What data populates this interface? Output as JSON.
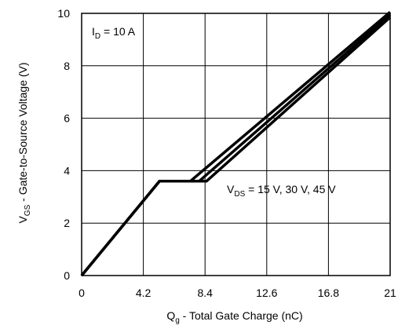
{
  "chart_data": {
    "type": "line",
    "title": "",
    "xlabel_main": "Q",
    "xlabel_sub": "g",
    "xlabel_rest": " - Total Gate Charge (nC)",
    "ylabel_main": "V",
    "ylabel_sub": "GS",
    "ylabel_rest": " - Gate-to-Source Voltage (V)",
    "xlim": [
      0,
      21
    ],
    "ylim": [
      0,
      10
    ],
    "xticks": [
      0,
      4.2,
      8.4,
      12.6,
      16.8,
      21
    ],
    "xtick_labels": [
      "0",
      "4.2",
      "8.4",
      "12.6",
      "16.8",
      "21"
    ],
    "yticks": [
      0,
      2,
      4,
      6,
      8,
      10
    ],
    "ytick_labels": [
      "0",
      "2",
      "4",
      "6",
      "8",
      "10"
    ],
    "grid": true,
    "annotations": {
      "id_main": "I",
      "id_sub": "D",
      "id_rest": " = 10 A",
      "vds_main": "V",
      "vds_sub": "DS",
      "vds_rest": " = 15 V, 30 V, 45 V"
    },
    "series": [
      {
        "points": [
          [
            0,
            0
          ],
          [
            5.3,
            3.6
          ],
          [
            7.4,
            3.6
          ],
          [
            21,
            10.05
          ]
        ]
      },
      {
        "points": [
          [
            0,
            0
          ],
          [
            5.3,
            3.6
          ],
          [
            8.0,
            3.6
          ],
          [
            21,
            9.95
          ]
        ]
      },
      {
        "points": [
          [
            0,
            0
          ],
          [
            5.3,
            3.6
          ],
          [
            8.5,
            3.6
          ],
          [
            21,
            9.85
          ]
        ]
      }
    ],
    "line_color": "#000000"
  }
}
